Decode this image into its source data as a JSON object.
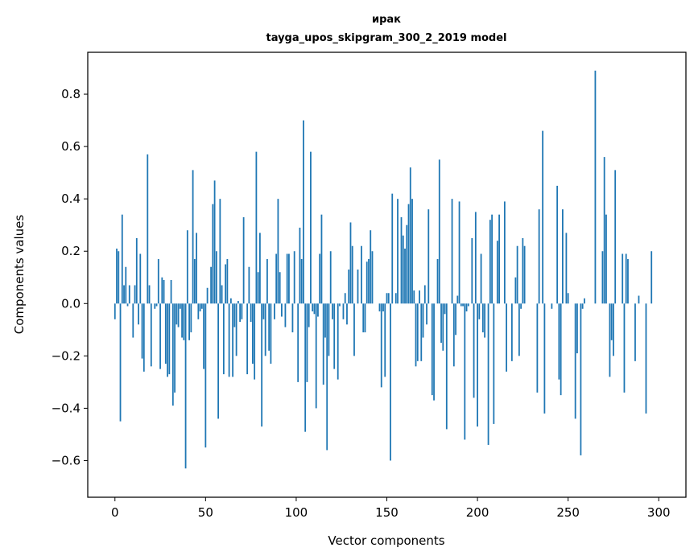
{
  "chart_data": {
    "type": "bar",
    "title": "ирак",
    "subtitle": "tayga_upos_skipgram_300_2_2019 model",
    "xlabel": "Vector components",
    "ylabel": "Components values",
    "xlim": [
      -15,
      315
    ],
    "ylim": [
      -0.74,
      0.96
    ],
    "xticks": [
      0,
      50,
      100,
      150,
      200,
      250,
      300
    ],
    "yticks": [
      -0.6,
      -0.4,
      -0.2,
      0.0,
      0.2,
      0.4,
      0.6,
      0.8
    ],
    "ytick_labels": [
      "−0.6",
      "−0.4",
      "−0.2",
      "0.0",
      "0.2",
      "0.4",
      "0.6",
      "0.8"
    ],
    "bar_color": "#1f77b4",
    "values": [
      -0.06,
      0.21,
      0.2,
      -0.45,
      0.34,
      0.07,
      0.14,
      -0.01,
      0.07,
      0.0,
      -0.13,
      0.07,
      0.25,
      -0.08,
      0.19,
      -0.21,
      -0.26,
      0.0,
      0.57,
      0.07,
      -0.24,
      0.0,
      -0.02,
      -0.01,
      0.17,
      -0.25,
      0.1,
      0.09,
      -0.23,
      -0.28,
      -0.27,
      0.09,
      -0.39,
      -0.34,
      -0.08,
      -0.09,
      -0.02,
      -0.13,
      -0.14,
      -0.63,
      0.28,
      -0.14,
      -0.11,
      0.51,
      0.17,
      0.27,
      -0.06,
      -0.03,
      -0.02,
      -0.25,
      -0.55,
      0.06,
      0.0,
      0.14,
      0.38,
      0.47,
      0.2,
      -0.44,
      0.4,
      0.07,
      -0.27,
      0.15,
      0.17,
      -0.28,
      0.02,
      -0.28,
      -0.09,
      -0.2,
      0.01,
      -0.07,
      -0.06,
      0.33,
      0.0,
      -0.27,
      0.14,
      -0.07,
      -0.23,
      -0.29,
      0.58,
      0.12,
      0.27,
      -0.47,
      -0.06,
      -0.2,
      0.17,
      -0.18,
      -0.23,
      0.0,
      -0.06,
      0.19,
      0.4,
      0.12,
      -0.05,
      0.0,
      -0.09,
      0.19,
      0.19,
      0.0,
      -0.11,
      0.2,
      0.0,
      -0.3,
      0.29,
      0.17,
      0.7,
      -0.49,
      -0.3,
      -0.09,
      0.58,
      -0.03,
      -0.04,
      -0.4,
      -0.05,
      0.19,
      0.34,
      -0.31,
      -0.13,
      -0.56,
      -0.2,
      0.2,
      -0.06,
      -0.25,
      0.0,
      -0.29,
      -0.01,
      0.0,
      -0.06,
      0.04,
      -0.08,
      0.13,
      0.31,
      0.22,
      -0.2,
      0.0,
      0.13,
      0.0,
      0.22,
      -0.11,
      -0.11,
      0.16,
      0.17,
      0.28,
      0.2,
      0.0,
      0.0,
      0.0,
      -0.03,
      -0.32,
      -0.03,
      -0.28,
      0.04,
      0.04,
      -0.6,
      0.42,
      0.0,
      0.04,
      0.4,
      0.0,
      0.33,
      0.26,
      0.21,
      0.3,
      0.38,
      0.52,
      0.4,
      0.05,
      -0.24,
      -0.22,
      0.05,
      -0.22,
      -0.13,
      0.07,
      -0.08,
      0.36,
      0.0,
      -0.35,
      -0.37,
      0.0,
      0.17,
      0.55,
      -0.15,
      -0.18,
      -0.04,
      -0.48,
      0.0,
      0.0,
      0.4,
      -0.24,
      -0.12,
      0.03,
      0.39,
      -0.01,
      -0.01,
      -0.52,
      -0.03,
      -0.01,
      0.0,
      0.25,
      -0.36,
      0.35,
      -0.47,
      -0.06,
      0.19,
      -0.11,
      -0.13,
      0.0,
      -0.54,
      0.32,
      0.34,
      -0.46,
      0.0,
      0.24,
      0.34,
      0.0,
      0.0,
      0.39,
      -0.26,
      0.0,
      0.0,
      -0.22,
      0.0,
      0.1,
      0.22,
      -0.2,
      -0.02,
      0.25,
      0.22,
      0.0,
      0.0,
      0.0,
      0.0,
      0.0,
      0.0,
      -0.34,
      0.36,
      0.0,
      0.66,
      -0.42,
      0.0,
      0.0,
      0.0,
      -0.02,
      0.0,
      0.0,
      0.45,
      -0.29,
      -0.35,
      0.36,
      0.0,
      0.27,
      0.04,
      0.0,
      0.0,
      0.0,
      -0.44,
      -0.19,
      0.0,
      -0.58,
      -0.02,
      0.02,
      0.0,
      0.0,
      0.0,
      0.0,
      0.0,
      0.89,
      0.0,
      0.0,
      0.0,
      0.2,
      0.56,
      0.34,
      0.0,
      -0.28,
      -0.14,
      -0.2,
      0.51,
      0.0,
      0.0,
      0.0,
      0.19,
      -0.34,
      0.19,
      0.17,
      0.0,
      0.0,
      0.0,
      -0.22,
      0.0,
      0.03,
      0.0,
      0.0,
      0.0,
      -0.42,
      0.0,
      0.0,
      0.2,
      0.0
    ]
  }
}
